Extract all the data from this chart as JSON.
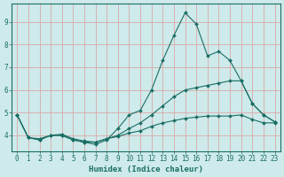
{
  "xlabel": "Humidex (Indice chaleur)",
  "bg_color": "#ceeaea",
  "grid_color": "#dba8a8",
  "line_color": "#1a6e64",
  "xlim": [
    -0.5,
    23.5
  ],
  "ylim": [
    3.3,
    9.8
  ],
  "xticks": [
    0,
    1,
    2,
    3,
    4,
    5,
    6,
    7,
    8,
    9,
    10,
    11,
    12,
    13,
    14,
    15,
    16,
    17,
    18,
    19,
    20,
    21,
    22,
    23
  ],
  "yticks": [
    4,
    5,
    6,
    7,
    8,
    9
  ],
  "series": [
    [
      4.9,
      3.9,
      3.8,
      4.0,
      4.0,
      3.8,
      3.7,
      3.6,
      3.8,
      4.3,
      4.9,
      5.1,
      6.0,
      7.3,
      8.4,
      9.4,
      8.9,
      7.5,
      7.7,
      7.3,
      6.4,
      5.4,
      4.9,
      4.6
    ],
    [
      4.9,
      3.9,
      3.8,
      4.0,
      4.0,
      3.8,
      3.7,
      3.7,
      3.85,
      4.0,
      4.3,
      4.55,
      4.9,
      5.3,
      5.7,
      6.0,
      6.1,
      6.2,
      6.3,
      6.4,
      6.4,
      5.4,
      4.9,
      4.6
    ],
    [
      4.9,
      3.9,
      3.85,
      4.0,
      4.05,
      3.85,
      3.75,
      3.7,
      3.85,
      3.95,
      4.1,
      4.2,
      4.4,
      4.55,
      4.65,
      4.75,
      4.8,
      4.85,
      4.85,
      4.85,
      4.9,
      4.7,
      4.55,
      4.55
    ]
  ]
}
